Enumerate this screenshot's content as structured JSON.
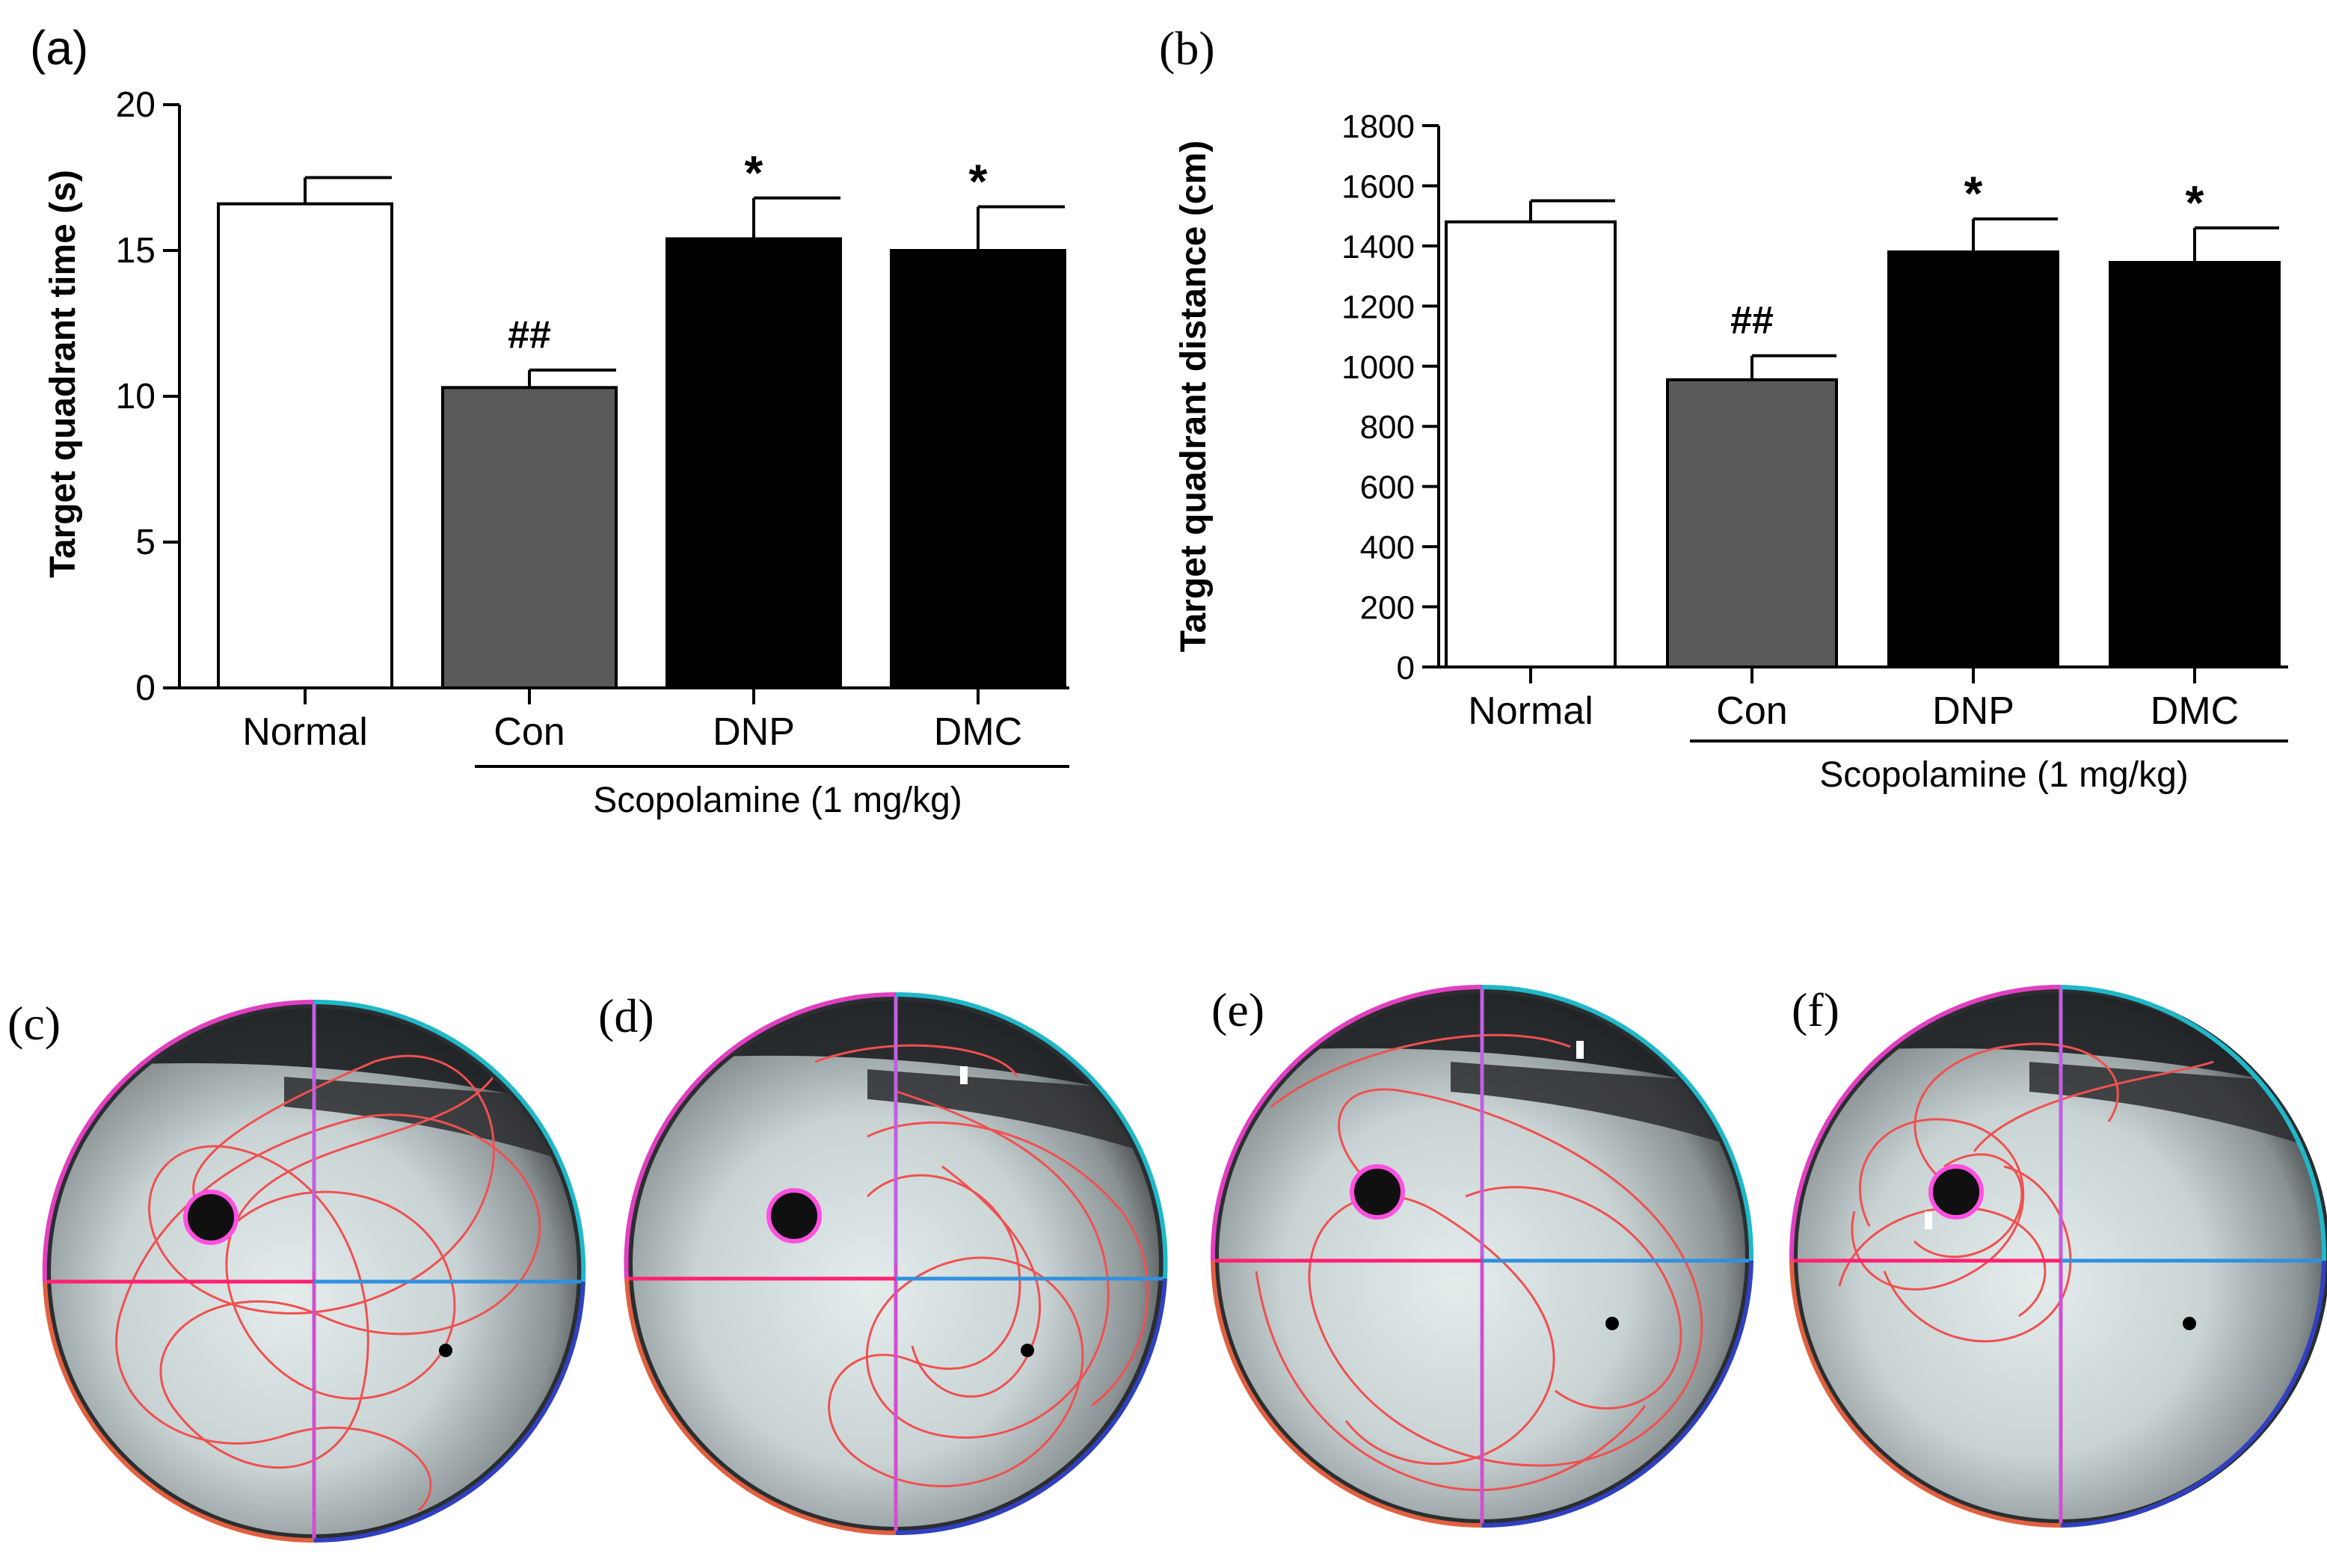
{
  "chart_data": [
    {
      "panel": "(a)",
      "type": "bar",
      "ylabel": "Target quadrant time (s)",
      "ylim": [
        0,
        20
      ],
      "yticks": [
        0,
        5,
        10,
        15,
        20
      ],
      "categories": [
        "Normal",
        "Con",
        "DNP",
        "DMC"
      ],
      "values": [
        16.6,
        10.3,
        15.4,
        15.0
      ],
      "errors": [
        0.9,
        0.6,
        1.4,
        1.5
      ],
      "fills": [
        "#ffffff",
        "#5a5a5a",
        "#000000",
        "#000000"
      ],
      "annotations": [
        "",
        "##",
        "*",
        "*"
      ],
      "group_label": "Scopolamine (1 mg/kg)"
    },
    {
      "panel": "(b)",
      "type": "bar",
      "ylabel": "Target quadrant distance (cm)",
      "ylim": [
        0,
        1800
      ],
      "yticks": [
        0,
        200,
        400,
        600,
        800,
        1000,
        1200,
        1400,
        1600,
        1800
      ],
      "categories": [
        "Normal",
        "Con",
        "DNP",
        "DMC"
      ],
      "values": [
        1480,
        955,
        1380,
        1345
      ],
      "errors": [
        70,
        80,
        110,
        115
      ],
      "fills": [
        "#ffffff",
        "#5a5a5a",
        "#000000",
        "#000000"
      ],
      "annotations": [
        "",
        "##",
        "*",
        "*"
      ],
      "group_label": "Scopolamine (1 mg/kg)"
    }
  ],
  "tracks": {
    "labels": [
      "(c)",
      "(d)",
      "(e)",
      "(f)"
    ],
    "description_icons": [
      "swim-path-pool",
      "swim-path-pool",
      "swim-path-pool",
      "swim-path-pool"
    ]
  },
  "colors": {
    "quadrant_magenta": "#e040c0",
    "quadrant_cyan": "#20b8c8",
    "quadrant_blue": "#3090e0",
    "quadrant_pink": "#ff2070",
    "path_red": "#f05050",
    "platform_ring": "#ff50e0"
  }
}
